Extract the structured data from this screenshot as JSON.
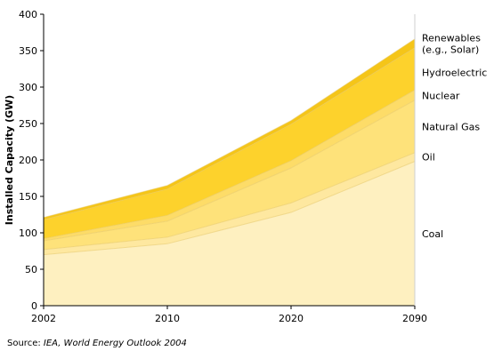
{
  "chart_data": {
    "type": "area",
    "stacked": true,
    "x": [
      "2002",
      "2010",
      "2020",
      "2090"
    ],
    "ylabel": "Installed Capacity (GW)",
    "xlabel": "",
    "ylim": [
      0,
      400
    ],
    "yticks": [
      "0",
      "50",
      "100",
      "150",
      "200",
      "250",
      "300",
      "350",
      "400"
    ],
    "grid": false,
    "legend_position": "right",
    "series": [
      {
        "name": "Coal",
        "values": [
          70,
          85,
          128,
          198
        ],
        "color": "#FEF0C0"
      },
      {
        "name": "Oil",
        "values": [
          7,
          9,
          13,
          12
        ],
        "color": "#FEE8A0"
      },
      {
        "name": "Natural Gas",
        "values": [
          12,
          22,
          48,
          72
        ],
        "color": "#FEE27A"
      },
      {
        "name": "Nuclear",
        "values": [
          3,
          8,
          10,
          14
        ],
        "color": "#FDDC68"
      },
      {
        "name": "Hydroelectric",
        "values": [
          26,
          36,
          50,
          58
        ],
        "color": "#FDD22C"
      },
      {
        "name": "Renewables\n(e.g., Solar)",
        "values": [
          3,
          5,
          5,
          12
        ],
        "color": "#F5C518"
      }
    ]
  },
  "source": {
    "prefix": "Source: ",
    "italic": "IEA, World Energy Outlook 2004"
  }
}
